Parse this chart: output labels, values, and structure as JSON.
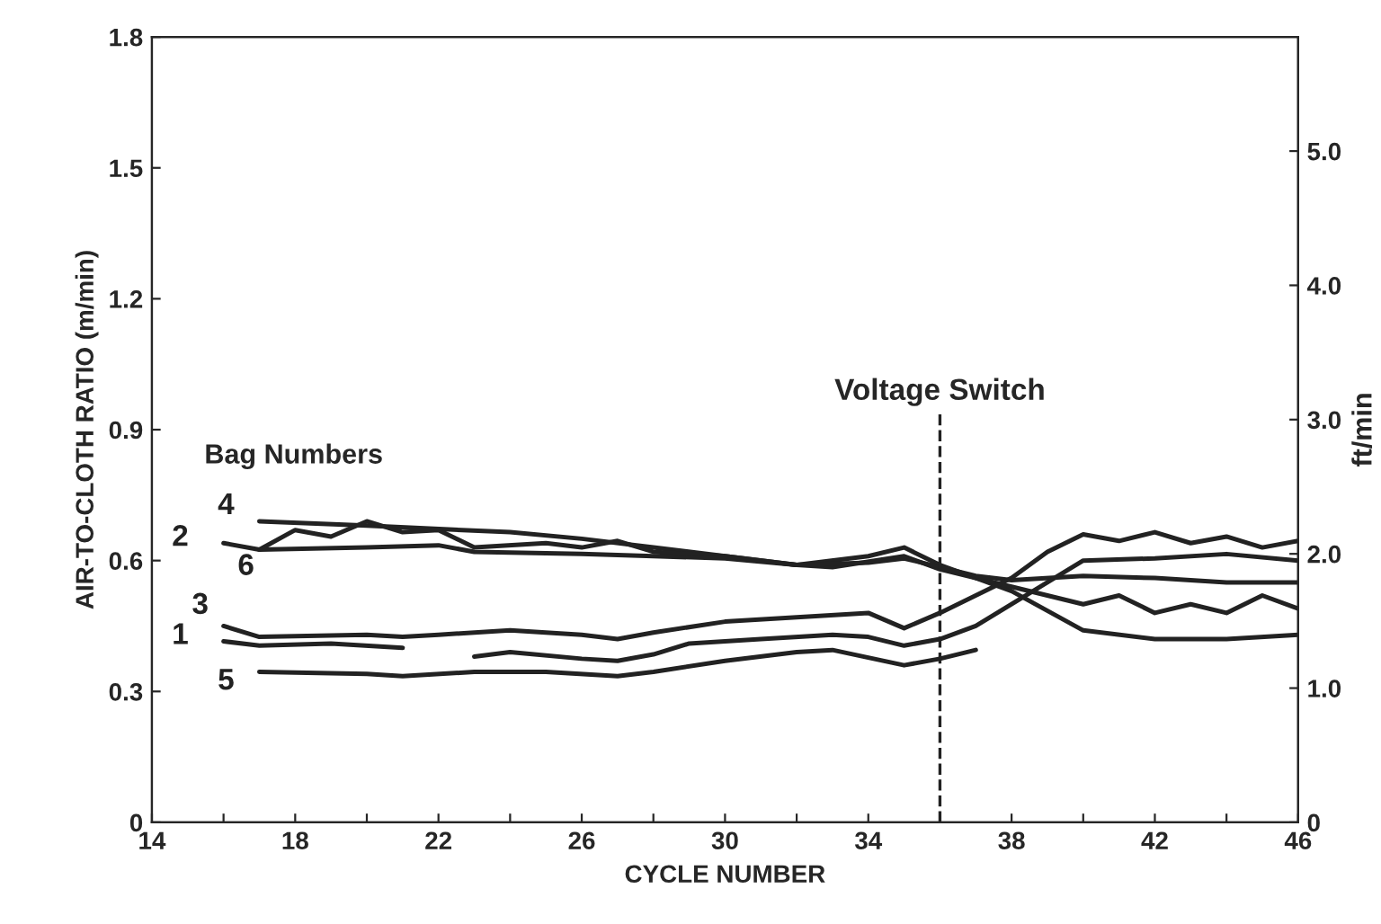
{
  "chart_data": {
    "type": "line",
    "xlabel": "CYCLE NUMBER",
    "ylabel": "AIR-TO-CLOTH RATIO (m/min)",
    "y2label": "ft/min",
    "legend_title": "Bag Numbers",
    "xlim": [
      14,
      46
    ],
    "xticks": [
      14,
      {
        "value": 16,
        "label": null
      },
      18,
      {
        "value": 20,
        "label": null
      },
      22,
      {
        "value": 24,
        "label": null
      },
      26,
      {
        "value": 28,
        "label": null
      },
      30,
      {
        "value": 32,
        "label": null
      },
      34,
      {
        "value": 36,
        "label": null
      },
      38,
      {
        "value": 40,
        "label": null
      },
      42,
      {
        "value": 44,
        "label": null
      },
      46
    ],
    "ylim": [
      0,
      1.8
    ],
    "yticks": [
      0,
      0.3,
      0.6,
      0.9,
      1.2,
      1.5,
      1.8
    ],
    "y2lim": [
      0,
      5.85
    ],
    "y2ticks": [
      0,
      {
        "value": 1,
        "label": "1.0"
      },
      {
        "value": 2,
        "label": "2.0"
      },
      {
        "value": 3,
        "label": "3.0"
      },
      {
        "value": 4,
        "label": "4.0"
      },
      {
        "value": 5,
        "label": "5.0"
      }
    ],
    "grid": false,
    "legend": false,
    "marker": "none",
    "line_style": "solid",
    "ref_lines": [
      {
        "axis": "x",
        "value": 36,
        "label": "Voltage Switch",
        "color": "#222222",
        "line_style": "dashed"
      }
    ],
    "series": [
      {
        "name": "4",
        "color": "#222222",
        "x": [
          17,
          20,
          24,
          26,
          28,
          30,
          32,
          34,
          35,
          36,
          38,
          40,
          42,
          44,
          46
        ],
        "values": [
          0.69,
          0.68,
          0.665,
          0.65,
          0.63,
          0.61,
          0.59,
          0.61,
          0.63,
          0.59,
          0.53,
          0.44,
          0.42,
          0.42,
          0.43
        ]
      },
      {
        "name": "2",
        "color": "#222222",
        "x": [
          16,
          17,
          18,
          19,
          20,
          21,
          22,
          23,
          25,
          26,
          27,
          28,
          30,
          32,
          33,
          35,
          36,
          37,
          38,
          40,
          41,
          42,
          43,
          44,
          45,
          46
        ],
        "values": [
          0.64,
          0.625,
          0.67,
          0.655,
          0.69,
          0.665,
          0.67,
          0.63,
          0.64,
          0.63,
          0.645,
          0.62,
          0.61,
          0.59,
          0.585,
          0.61,
          0.58,
          0.56,
          0.54,
          0.5,
          0.52,
          0.48,
          0.5,
          0.48,
          0.52,
          0.49
        ]
      },
      {
        "name": "6",
        "color": "#222222",
        "x": [
          17,
          20,
          22,
          23,
          26,
          28,
          30,
          32,
          34,
          35,
          36,
          37,
          38,
          40,
          42,
          44,
          46
        ],
        "values": [
          0.625,
          0.63,
          0.635,
          0.62,
          0.615,
          0.61,
          0.605,
          0.59,
          0.595,
          0.605,
          0.585,
          0.565,
          0.555,
          0.565,
          0.56,
          0.55,
          0.55
        ]
      },
      {
        "name": "3",
        "color": "#222222",
        "x": [
          16,
          17,
          20,
          21,
          22,
          24,
          26,
          27,
          28,
          30,
          32,
          34,
          35,
          36,
          38,
          39,
          40,
          41,
          42,
          43,
          44,
          45,
          46
        ],
        "values": [
          0.45,
          0.425,
          0.43,
          0.425,
          0.43,
          0.44,
          0.43,
          0.42,
          0.435,
          0.46,
          0.47,
          0.48,
          0.445,
          0.48,
          0.56,
          0.62,
          0.66,
          0.645,
          0.665,
          0.64,
          0.655,
          0.63,
          0.645
        ]
      },
      {
        "name": "1",
        "color": "#222222",
        "x": [
          16,
          17,
          19,
          21,
          22,
          23,
          24,
          26,
          27,
          28,
          29,
          31,
          33,
          34,
          35,
          36,
          37,
          38,
          40,
          42,
          44,
          46
        ],
        "values": [
          0.415,
          0.405,
          0.41,
          0.4,
          null,
          0.38,
          0.39,
          0.375,
          0.37,
          0.385,
          0.41,
          0.42,
          0.43,
          0.425,
          0.405,
          0.42,
          0.45,
          0.5,
          0.6,
          0.605,
          0.615,
          0.6
        ]
      },
      {
        "name": "5",
        "color": "#222222",
        "x": [
          17,
          20,
          21,
          23,
          25,
          27,
          28,
          30,
          32,
          33,
          35,
          36,
          37
        ],
        "values": [
          0.345,
          0.34,
          0.335,
          0.345,
          0.345,
          0.335,
          0.345,
          0.37,
          0.39,
          0.395,
          0.36,
          0.375,
          0.395
        ]
      }
    ]
  }
}
